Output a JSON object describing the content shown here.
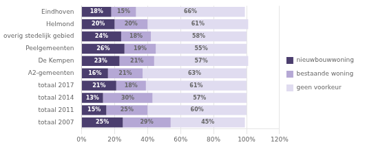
{
  "chart_data": {
    "type": "bar",
    "orientation": "horizontal",
    "stacked": true,
    "data_labels": true,
    "grid": true,
    "legend": "right",
    "categories": [
      "Eindhoven",
      "Helmond",
      "overig stedelijk gebied",
      "Peelgemeenten",
      "De Kempen",
      "A2-gemeenten",
      "totaal 2017",
      "totaal 2014",
      "totaal 2011",
      "totaal 2007"
    ],
    "series": [
      {
        "name": "nieuwbouwwoning",
        "color": "#4B3E6E",
        "values": [
          18,
          20,
          24,
          26,
          23,
          16,
          21,
          13,
          15,
          25
        ],
        "value_labels": [
          "18%",
          "20%",
          "24%",
          "26%",
          "23%",
          "16%",
          "21%",
          "13%",
          "15%",
          "25%"
        ]
      },
      {
        "name": "bestaande woning",
        "color": "#B5A8D5",
        "values": [
          15,
          20,
          18,
          19,
          21,
          21,
          18,
          30,
          25,
          29
        ],
        "value_labels": [
          "15%",
          "20%",
          "18%",
          "19%",
          "21%",
          "21%",
          "18%",
          "30%",
          "25%",
          "29%"
        ]
      },
      {
        "name": "geen voorkeur",
        "color": "#E0DCF0",
        "values": [
          66,
          61,
          58,
          55,
          57,
          63,
          61,
          57,
          60,
          45
        ],
        "value_labels": [
          "66%",
          "61%",
          "58%",
          "55%",
          "57%",
          "63%",
          "61%",
          "57%",
          "60%",
          "45%"
        ]
      }
    ],
    "xlim": [
      0,
      120
    ],
    "xticks": [
      {
        "value": 0,
        "label": "0%"
      },
      {
        "value": 20,
        "label": "20%"
      },
      {
        "value": 40,
        "label": "40%"
      },
      {
        "value": 60,
        "label": "60%"
      },
      {
        "value": 80,
        "label": "80%"
      },
      {
        "value": 100,
        "label": "100%"
      },
      {
        "value": 120,
        "label": "120%"
      }
    ]
  }
}
